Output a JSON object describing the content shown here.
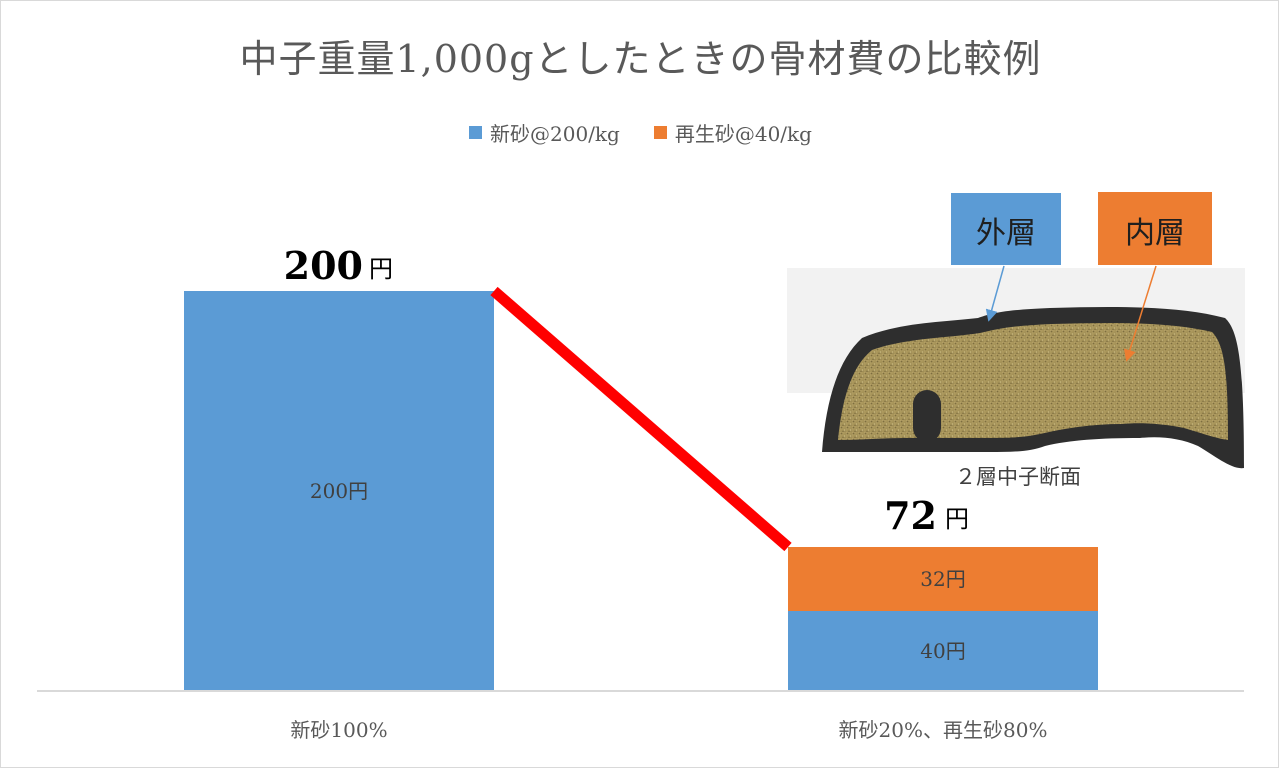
{
  "chart_data": {
    "type": "bar",
    "title": "中子重量1,000gとしたときの骨材費の比較例",
    "categories": [
      "新砂100%",
      "新砂20%、再生砂80%"
    ],
    "series": [
      {
        "name": "新砂@200/kg",
        "color": "#5b9bd5",
        "values": [
          200,
          40
        ],
        "labels": [
          "200円",
          "40円"
        ]
      },
      {
        "name": "再生砂@40/kg",
        "color": "#ed7d31",
        "values": [
          0,
          32
        ],
        "labels": [
          "",
          "32円"
        ]
      }
    ],
    "totals": [
      {
        "value": "200",
        "unit": "円"
      },
      {
        "value": "72",
        "unit": "円"
      }
    ],
    "ylim": [
      0,
      200
    ],
    "legend_position": "top",
    "trend_line_color": "#ff0000",
    "inset": {
      "caption": "２層中子断面",
      "outer_label": "外層",
      "inner_label": "内層",
      "outer_color": "#5b9bd5",
      "inner_color": "#ed7d31"
    }
  }
}
